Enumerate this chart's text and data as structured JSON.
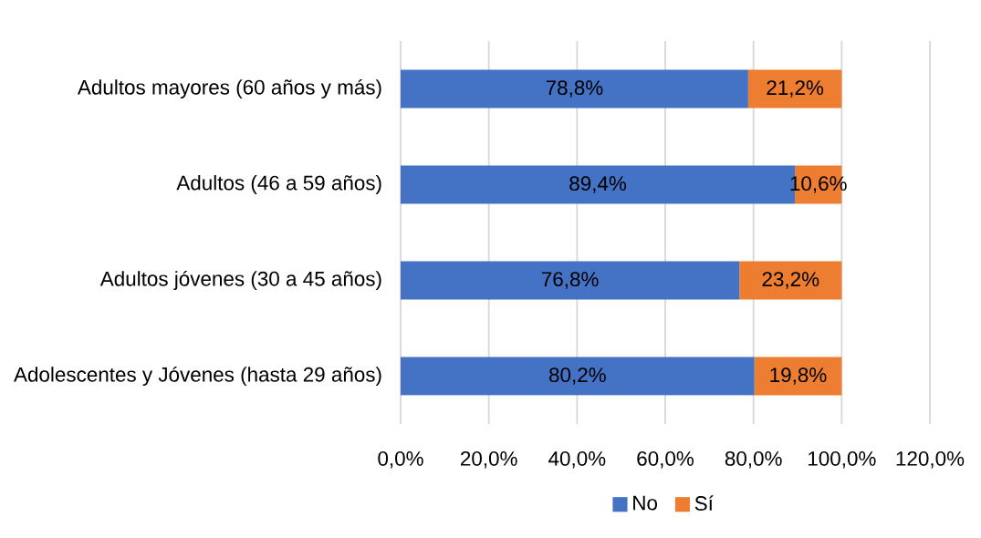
{
  "chart_data": {
    "type": "bar",
    "orientation": "horizontal",
    "stacked": true,
    "categories": [
      "Adultos mayores (60 años y más)",
      "Adultos (46 a 59 años)",
      "Adultos jóvenes (30 a 45 años)",
      "Adolescentes y Jóvenes (hasta 29 años)"
    ],
    "series": [
      {
        "name": "No",
        "color": "#4472c4",
        "values": [
          78.8,
          89.4,
          76.8,
          80.2
        ],
        "value_labels": [
          "78,8%",
          "89,4%",
          "76,8%",
          "80,2%"
        ]
      },
      {
        "name": "Sí",
        "color": "#ed7d31",
        "values": [
          21.2,
          10.6,
          23.2,
          19.8
        ],
        "value_labels": [
          "21,2%",
          "10,6%",
          "23,2%",
          "19,8%"
        ]
      }
    ],
    "xlim": [
      0,
      120
    ],
    "xticks": [
      {
        "value": 0,
        "label": "0,0%"
      },
      {
        "value": 20,
        "label": "20,0%"
      },
      {
        "value": 40,
        "label": "40,0%"
      },
      {
        "value": 60,
        "label": "60,0%"
      },
      {
        "value": 80,
        "label": "80,0%"
      },
      {
        "value": 100,
        "label": "100,0%"
      },
      {
        "value": 120,
        "label": "120,0%"
      }
    ],
    "grid": "x",
    "legend": "bottom"
  }
}
